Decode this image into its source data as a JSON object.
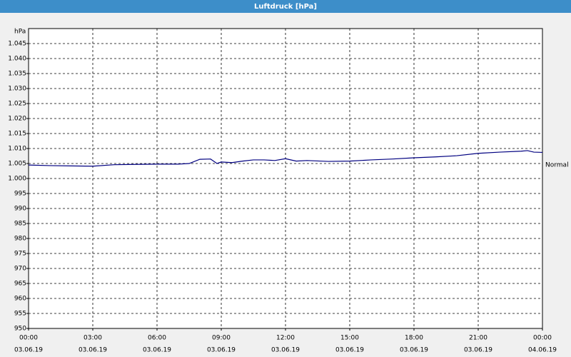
{
  "chart_data": {
    "type": "line",
    "title": "Luftdruck [hPa]",
    "y_label": "hPa",
    "x": [
      0,
      1,
      2,
      3,
      4,
      5,
      6,
      7,
      7.5,
      8,
      8.5,
      8.8,
      9,
      9.5,
      10,
      10.5,
      11,
      11.5,
      12,
      12.5,
      13,
      14,
      15,
      16,
      17,
      18,
      19,
      20,
      21,
      22,
      23,
      23.3,
      23.6,
      24
    ],
    "series": [
      {
        "name": "Normal",
        "color": "#000080",
        "values": [
          1004.5,
          1004.3,
          1004.2,
          1004.1,
          1004.6,
          1004.7,
          1004.8,
          1004.8,
          1005,
          1006.4,
          1006.5,
          1005,
          1005.5,
          1005.3,
          1005.8,
          1006.2,
          1006.2,
          1006,
          1006.6,
          1005.8,
          1006,
          1005.7,
          1005.8,
          1006.2,
          1006.5,
          1006.9,
          1007.2,
          1007.6,
          1008.4,
          1008.8,
          1009.1,
          1009.3,
          1008.8,
          1008.7
        ]
      }
    ],
    "xlim": [
      0,
      24
    ],
    "xticks": [
      {
        "value": 0,
        "label": "00:00"
      },
      {
        "value": 3,
        "label": "03:00"
      },
      {
        "value": 6,
        "label": "06:00"
      },
      {
        "value": 9,
        "label": "09:00"
      },
      {
        "value": 12,
        "label": "12:00"
      },
      {
        "value": 15,
        "label": "15:00"
      },
      {
        "value": 18,
        "label": "18:00"
      },
      {
        "value": 21,
        "label": "21:00"
      },
      {
        "value": 24,
        "label": "00:00"
      }
    ],
    "xtick_dates": [
      "03.06.19",
      "03.06.19",
      "03.06.19",
      "03.06.19",
      "03.06.19",
      "03.06.19",
      "03.06.19",
      "03.06.19",
      "04.06.19"
    ],
    "ylim": [
      950,
      1050
    ],
    "yticks": [
      950,
      955,
      960,
      965,
      970,
      975,
      980,
      985,
      990,
      995,
      {
        "value": 1000,
        "label": "1.000"
      },
      {
        "value": 1005,
        "label": "1.005"
      },
      {
        "value": 1010,
        "label": "1.010"
      },
      {
        "value": 1015,
        "label": "1.015"
      },
      {
        "value": 1020,
        "label": "1.020"
      },
      {
        "value": 1025,
        "label": "1.025"
      },
      {
        "value": 1030,
        "label": "1.030"
      },
      {
        "value": 1035,
        "label": "1.035"
      },
      {
        "value": 1040,
        "label": "1.040"
      },
      {
        "value": 1045,
        "label": "1.045"
      }
    ],
    "grid": true
  }
}
